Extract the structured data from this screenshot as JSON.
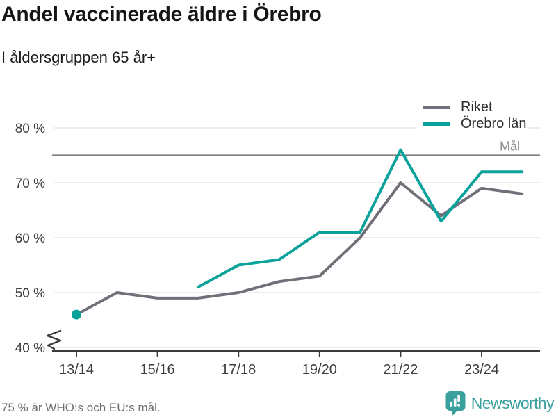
{
  "header": {
    "title": "Andel vaccinerade äldre i Örebro",
    "subtitle": "I åldersgruppen 65 år+"
  },
  "footer": {
    "note": "75 % är WHO:s och EU:s mål.",
    "brand": "Newsworthy"
  },
  "colors": {
    "accent_teal": "#0aa29b",
    "riket_gray": "#717078",
    "brand_teal": "#3aa09d",
    "grid": "#e7e7e7",
    "goal_line": "#7d7d7d",
    "axis": "#3b3b3b",
    "tick_text": "#3d3d3d",
    "goal_text": "#8f8f8f"
  },
  "chart_data": {
    "type": "line",
    "x": [
      "13/14",
      "14/15",
      "15/16",
      "16/17",
      "17/18",
      "18/19",
      "19/20",
      "20/21",
      "21/22",
      "22/23",
      "23/24",
      "24/25"
    ],
    "x_tick_labels": [
      "13/14",
      "15/16",
      "17/18",
      "19/20",
      "21/22",
      "23/24"
    ],
    "y_ticks": [
      40,
      50,
      60,
      70,
      80
    ],
    "y_tick_suffix": " %",
    "ylim": [
      40,
      84
    ],
    "y_axis_break": true,
    "grid": true,
    "legend_position": "top-right",
    "series": [
      {
        "name": "Riket",
        "color": "#717078",
        "values": [
          46,
          50,
          49,
          49,
          50,
          52,
          53,
          60,
          70,
          64,
          69,
          68
        ]
      },
      {
        "name": "Örebro län",
        "color": "#0aa29b",
        "values": [
          46,
          null,
          null,
          51,
          55,
          56,
          61,
          61,
          76,
          63,
          72,
          72
        ]
      }
    ],
    "goal_line": {
      "value": 75,
      "label": "Mål"
    }
  }
}
